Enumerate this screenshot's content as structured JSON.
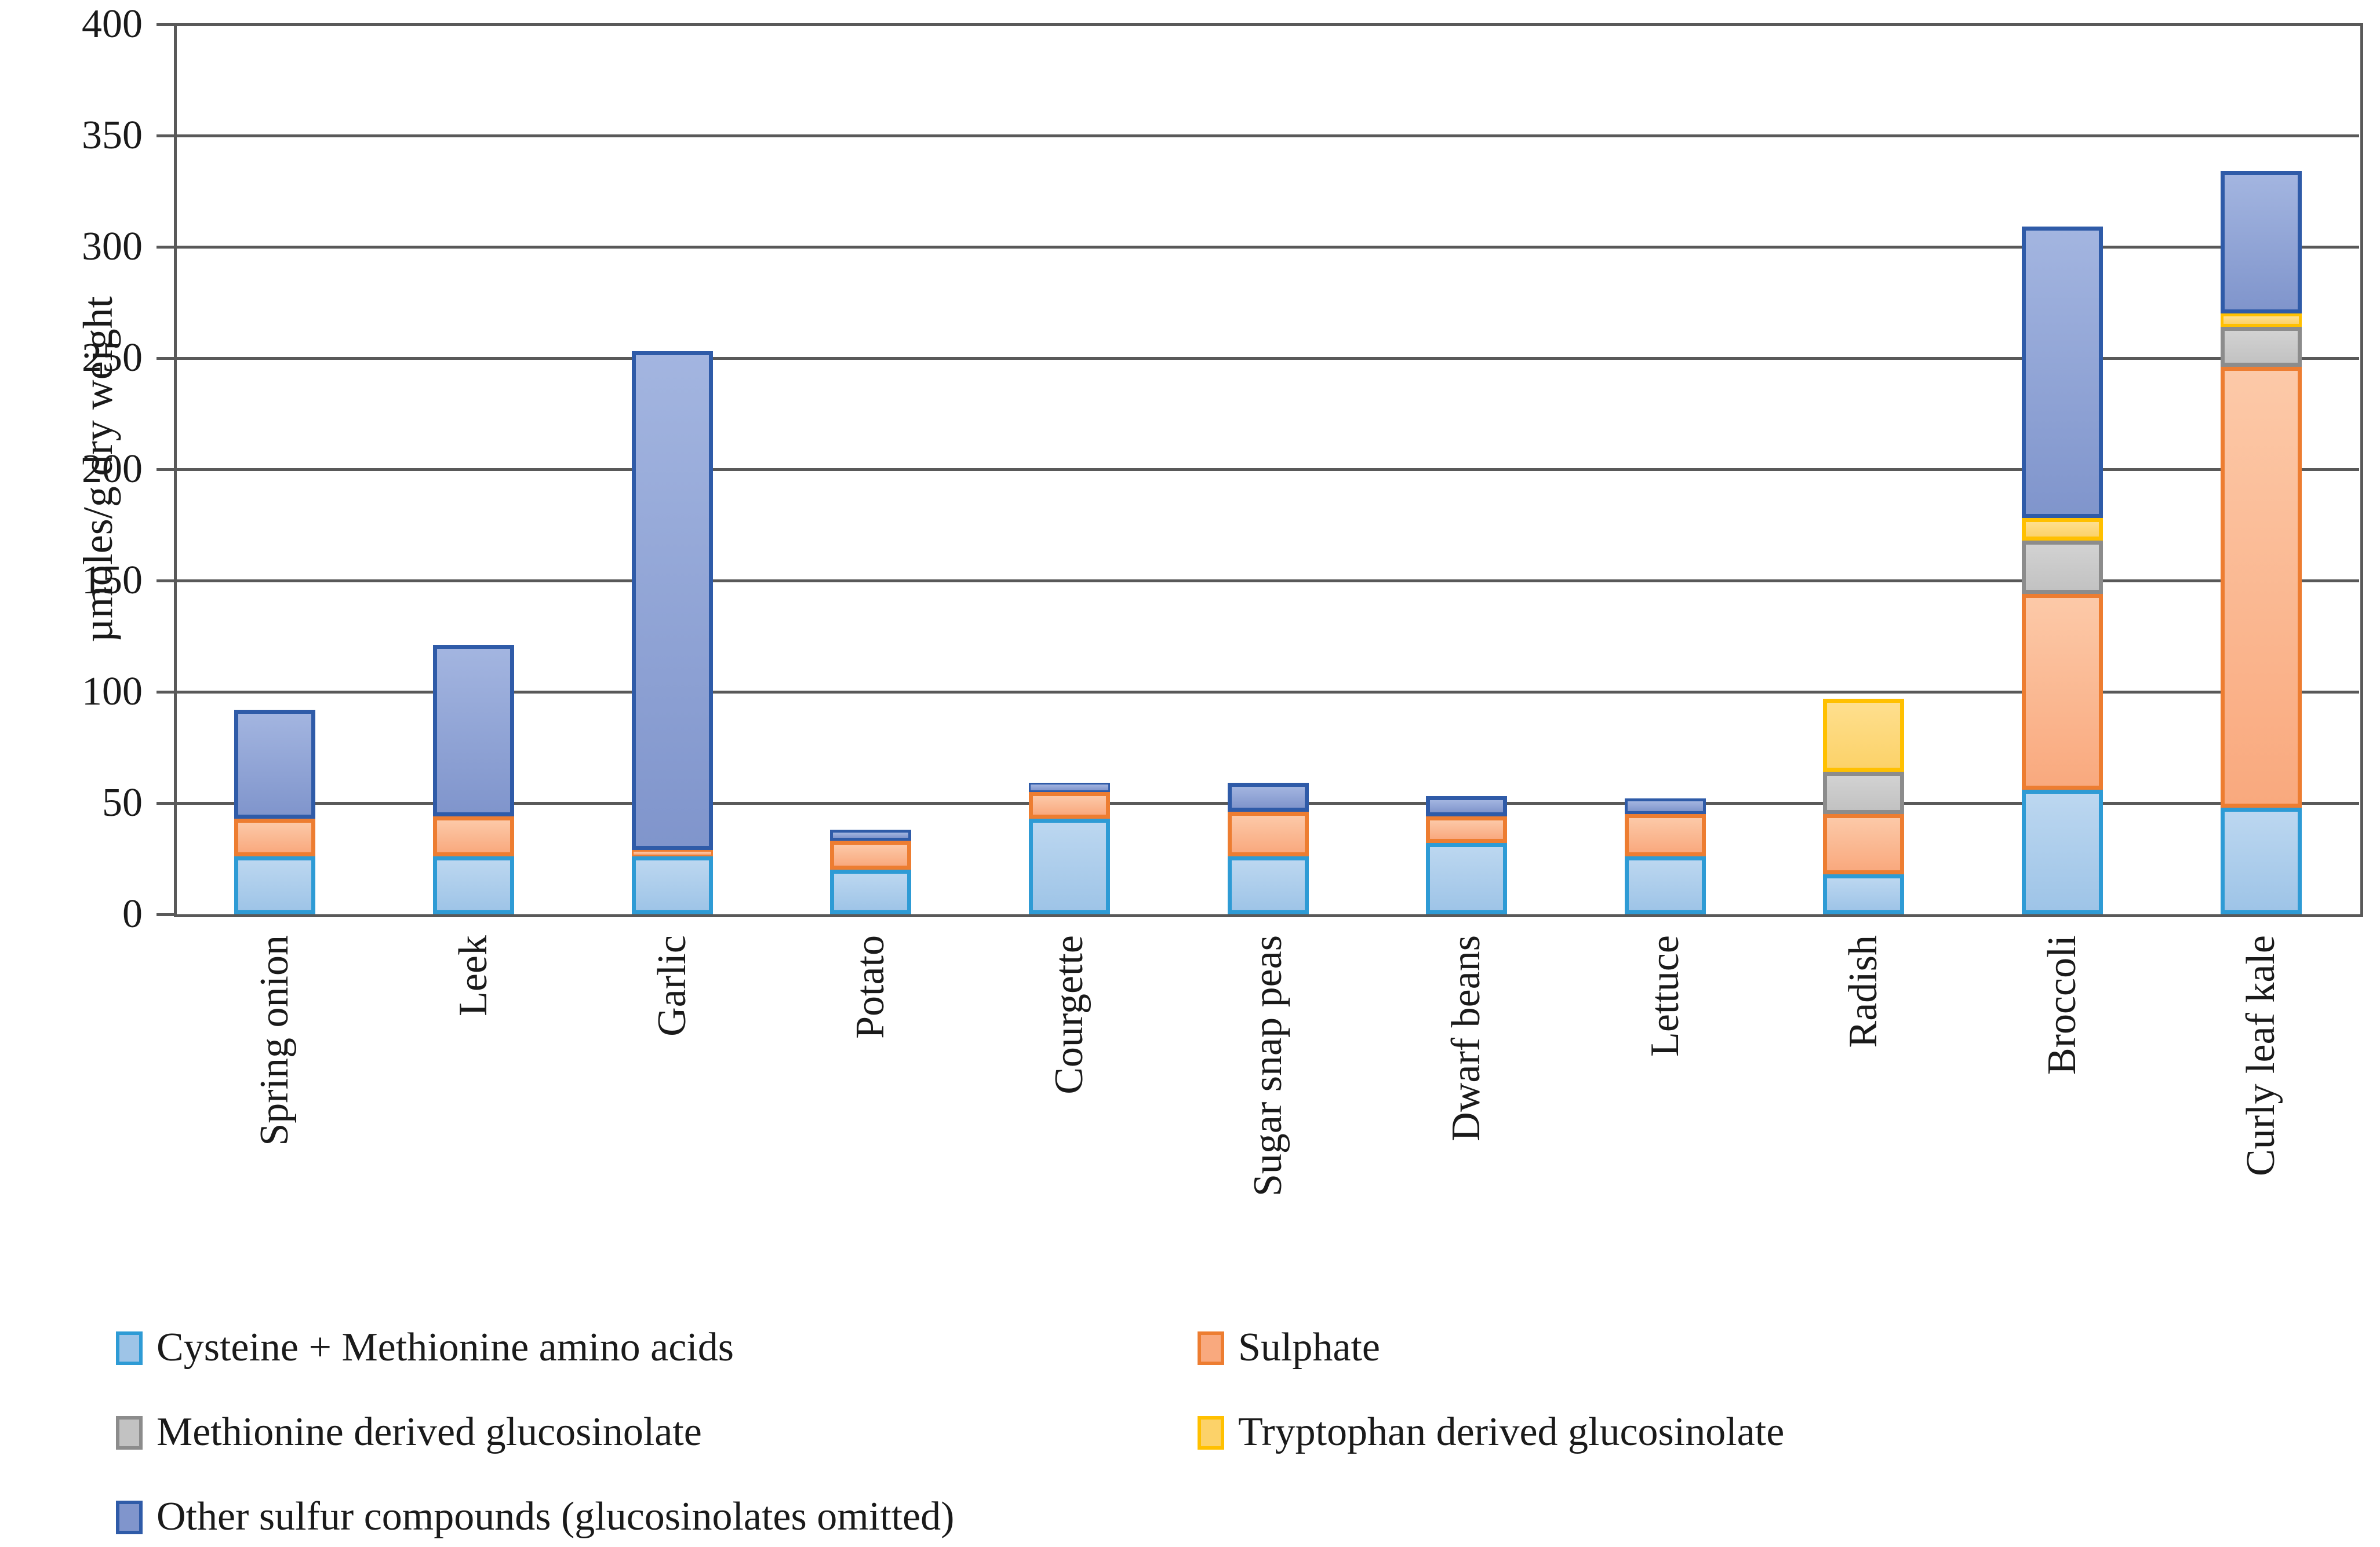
{
  "chart_data": {
    "type": "bar",
    "stacked": true,
    "title": "",
    "xlabel": "",
    "ylabel": "µmoles/g dry weight",
    "ylim": [
      0,
      400
    ],
    "yticks": [
      0,
      50,
      100,
      150,
      200,
      250,
      300,
      350,
      400
    ],
    "grid": "horizontal",
    "grid_color": "#595959",
    "legend_position": "bottom, two columns",
    "categories": [
      "Spring onion",
      "Leek",
      "Garlic",
      "Potato",
      "Courgette",
      "Sugar snap peas",
      "Dwarf beans",
      "Lettuce",
      "Radish",
      "Broccoli",
      "Curly leaf kale"
    ],
    "series": [
      {
        "name": "Cysteine + Methionine amino acids",
        "fill": "#9EC4E7",
        "fill_light": "#BCD7F0",
        "border": "#2E9BD5",
        "values": [
          26,
          26,
          26,
          20,
          43,
          26,
          32,
          26,
          18,
          56,
          48
        ]
      },
      {
        "name": "Sulphate",
        "fill": "#F9A97E",
        "fill_light": "#FCC9A8",
        "border": "#ED7D31",
        "values": [
          17,
          18,
          3,
          13,
          12,
          20,
          12,
          19,
          27,
          88,
          198
        ]
      },
      {
        "name": "Methionine derived glucosinolate",
        "fill": "#C2C2C2",
        "fill_light": "#D2D2D2",
        "border": "#8C8C8C",
        "values": [
          0,
          0,
          0,
          0,
          0,
          0,
          0,
          0,
          19,
          24,
          18
        ]
      },
      {
        "name": "Tryptophan derived glucosinolate",
        "fill": "#FCD269",
        "fill_light": "#FEDF8E",
        "border": "#FFC000",
        "values": [
          0,
          0,
          0,
          0,
          0,
          0,
          0,
          0,
          33,
          10,
          6
        ]
      },
      {
        "name": "Other sulfur compounds (glucosinolates omitted)",
        "fill": "#8095CC",
        "fill_light": "#A3B5E0",
        "border": "#2F5BA8",
        "values": [
          49,
          77,
          224,
          5,
          4,
          13,
          9,
          7,
          0,
          131,
          64
        ]
      }
    ],
    "totals": [
      92,
      121,
      253,
      38,
      59,
      59,
      53,
      52,
      97,
      309,
      334
    ],
    "legend_layout": [
      [
        {
          "series": 0,
          "col": 0
        },
        {
          "series": 1,
          "col": 1
        }
      ],
      [
        {
          "series": 2,
          "col": 0
        },
        {
          "series": 3,
          "col": 1
        }
      ],
      [
        {
          "series": 4,
          "col": 0
        }
      ]
    ]
  }
}
